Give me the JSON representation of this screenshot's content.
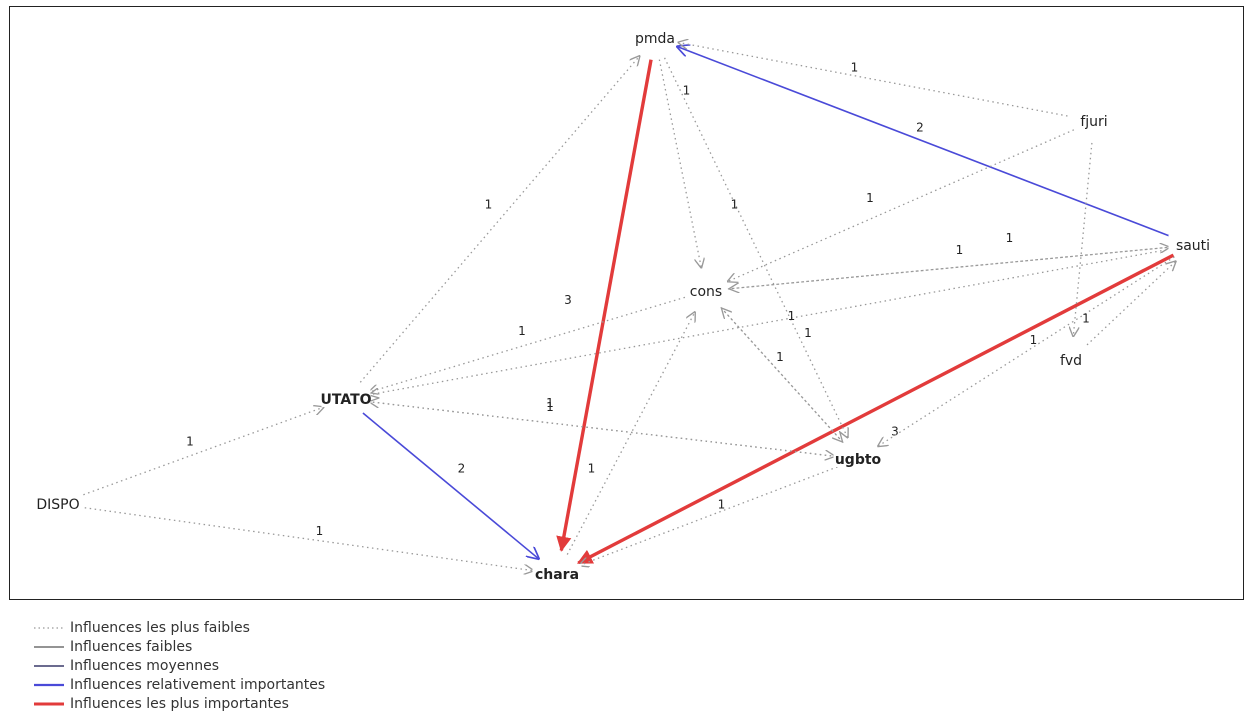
{
  "graph": {
    "nodes": [
      {
        "id": "pmda",
        "label": "pmda",
        "bold": false
      },
      {
        "id": "fjuri",
        "label": "fjuri",
        "bold": false
      },
      {
        "id": "sauti",
        "label": "sauti",
        "bold": false
      },
      {
        "id": "cons",
        "label": "cons",
        "bold": false
      },
      {
        "id": "fvd",
        "label": "fvd",
        "bold": false
      },
      {
        "id": "UTATO",
        "label": "UTATO",
        "bold": true
      },
      {
        "id": "ugbto",
        "label": "ugbto",
        "bold": true
      },
      {
        "id": "DISPO",
        "label": "DISPO",
        "bold": false
      },
      {
        "id": "chara",
        "label": "chara",
        "bold": true
      }
    ],
    "edges": [
      {
        "from": "pmda",
        "to": "chara",
        "weight": "3",
        "style": "strongest"
      },
      {
        "from": "sauti",
        "to": "chara",
        "weight": "3",
        "style": "strongest"
      },
      {
        "from": "sauti",
        "to": "pmda",
        "weight": "2",
        "style": "relative"
      },
      {
        "from": "UTATO",
        "to": "chara",
        "weight": "2",
        "style": "relative"
      },
      {
        "from": "fjuri",
        "to": "pmda",
        "weight": "1",
        "style": "weakest"
      },
      {
        "from": "fjuri",
        "to": "cons",
        "weight": "1",
        "style": "weakest"
      },
      {
        "from": "fjuri",
        "to": "fvd",
        "weight": "",
        "style": "weakest"
      },
      {
        "from": "pmda",
        "to": "cons",
        "weight": "1",
        "style": "weakest"
      },
      {
        "from": "pmda",
        "to": "ugbto",
        "weight": "1",
        "style": "weakest"
      },
      {
        "from": "UTATO",
        "to": "pmda",
        "weight": "1",
        "style": "weakest"
      },
      {
        "from": "sauti",
        "to": "cons",
        "weight": "1",
        "style": "weakest"
      },
      {
        "from": "cons",
        "to": "sauti",
        "weight": "1",
        "style": "weakest"
      },
      {
        "from": "sauti",
        "to": "UTATO",
        "weight": "1",
        "style": "weakest"
      },
      {
        "from": "sauti",
        "to": "ugbto",
        "weight": "1",
        "style": "weakest"
      },
      {
        "from": "fvd",
        "to": "sauti",
        "weight": "1",
        "style": "weakest"
      },
      {
        "from": "cons",
        "to": "UTATO",
        "weight": "1",
        "style": "weakest"
      },
      {
        "from": "ugbto",
        "to": "UTATO",
        "weight": "1",
        "style": "weakest"
      },
      {
        "from": "UTATO",
        "to": "ugbto",
        "weight": "1",
        "style": "weakest"
      },
      {
        "from": "ugbto",
        "to": "cons",
        "weight": "1",
        "style": "weakest"
      },
      {
        "from": "cons",
        "to": "ugbto",
        "weight": "1",
        "style": "weakest"
      },
      {
        "from": "DISPO",
        "to": "UTATO",
        "weight": "1",
        "style": "weakest"
      },
      {
        "from": "DISPO",
        "to": "chara",
        "weight": "1",
        "style": "weakest"
      },
      {
        "from": "ugbto",
        "to": "chara",
        "weight": "1",
        "style": "weakest"
      },
      {
        "from": "chara",
        "to": "cons",
        "weight": "1",
        "style": "weakest"
      }
    ]
  },
  "legend": {
    "items": [
      {
        "style": "weakest",
        "label": "Influences les plus faibles"
      },
      {
        "style": "weak",
        "label": "Influences faibles"
      },
      {
        "style": "medium",
        "label": "Influences moyennes"
      },
      {
        "style": "relative",
        "label": "Influences relativement importantes"
      },
      {
        "style": "strongest",
        "label": "Influences les plus importantes"
      }
    ]
  },
  "colors": {
    "weakest": "#999999",
    "weak": "#555555",
    "medium": "#3a3a6a",
    "relative": "#4a4ad8",
    "strongest": "#e23b3b"
  }
}
